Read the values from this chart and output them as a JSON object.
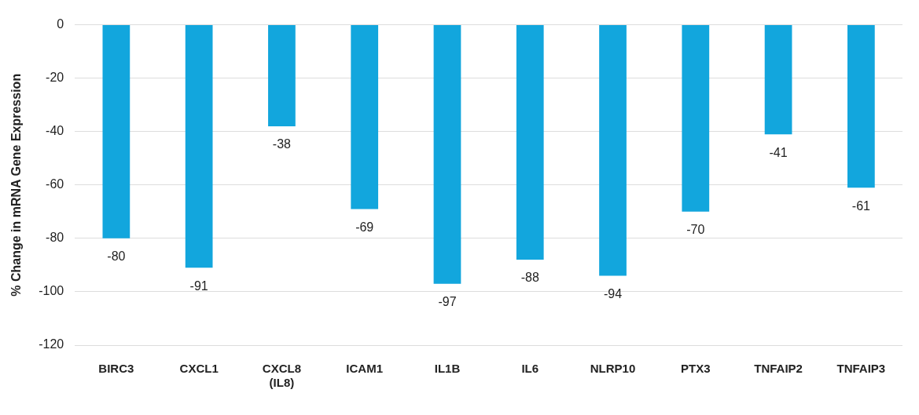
{
  "chart_data": {
    "type": "bar",
    "ylabel": "% Change in mRNA Gene Expression",
    "categories": [
      "BIRC3",
      "CXCL1",
      "CXCL8 (IL8)",
      "ICAM1",
      "IL1B",
      "IL6",
      "NLRP10",
      "PTX3",
      "TNFAIP2",
      "TNFAIP3"
    ],
    "values": [
      -80,
      -91,
      -38,
      -69,
      -97,
      -88,
      -94,
      -70,
      -41,
      -61
    ],
    "color": "#12a6dd",
    "ylim": [
      -120,
      0
    ],
    "yticks": [
      -120,
      -100,
      -80,
      -60,
      -40,
      -20,
      0
    ],
    "grid": "y",
    "data_labels": true,
    "legend": false
  }
}
